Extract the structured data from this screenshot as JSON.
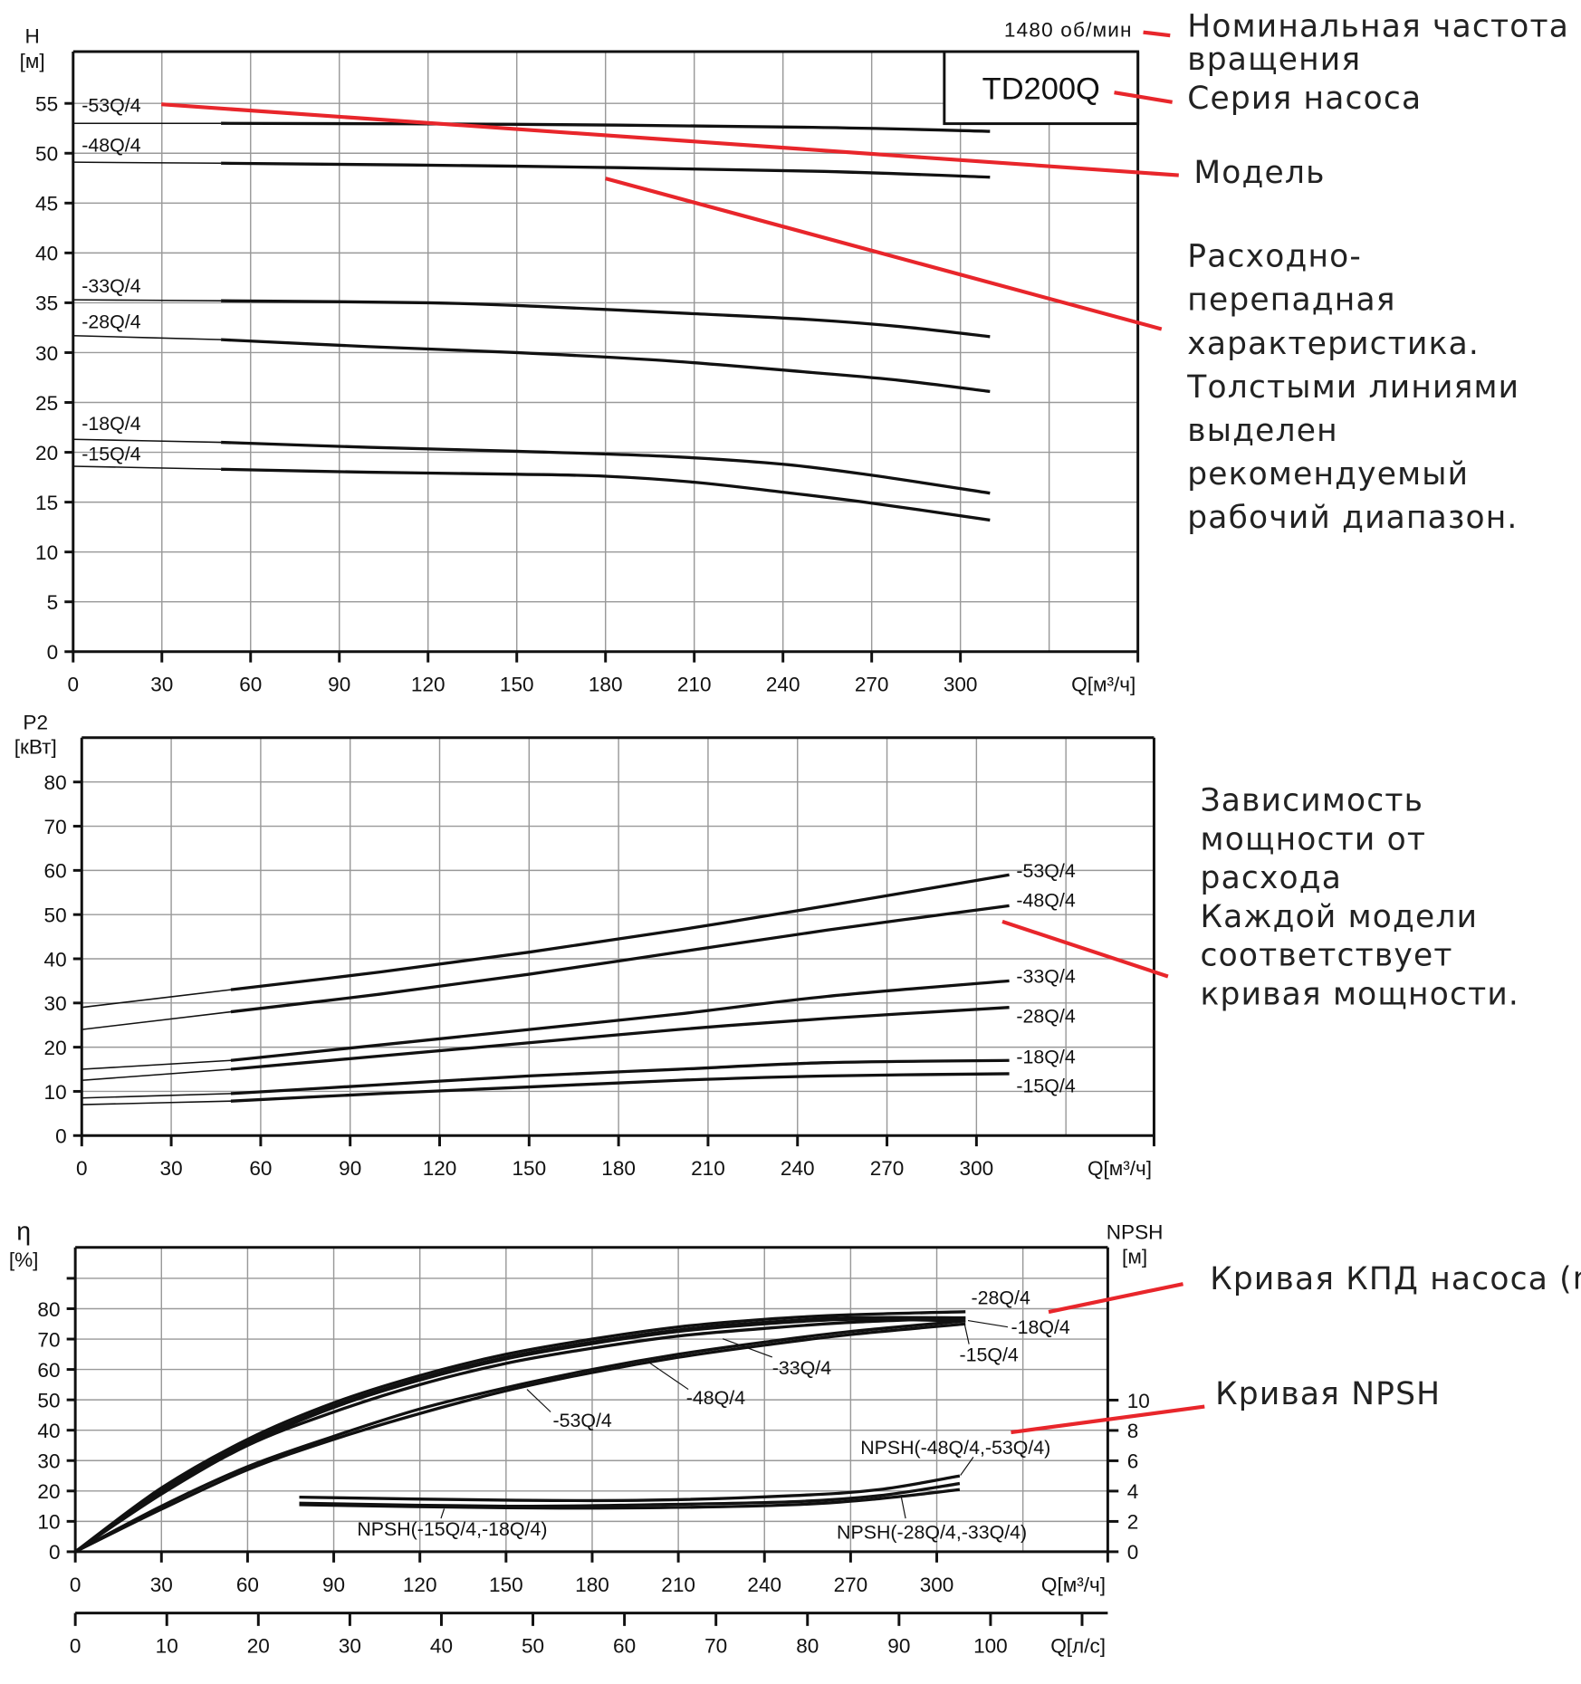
{
  "colors": {
    "curve": "#111111",
    "grid": "#999999",
    "annotation": "#e8262b"
  },
  "chart_data": [
    {
      "type": "line",
      "id": "head",
      "ylabel": "H",
      "yunit": "[м]",
      "xlabel": "Q[м³/ч]",
      "xlim": [
        0,
        330
      ],
      "ylim": [
        0,
        60
      ],
      "xticks": [
        0,
        30,
        60,
        90,
        120,
        150,
        180,
        210,
        240,
        270,
        300
      ],
      "yticks": [
        0,
        5,
        10,
        15,
        20,
        25,
        30,
        35,
        40,
        45,
        50,
        55
      ],
      "speed_label": "1480 об/мин",
      "series_title": "TD200Q",
      "grid": true,
      "series": [
        {
          "name": "-53Q/4",
          "x": [
            0,
            50,
            150,
            250,
            310
          ],
          "y": [
            53,
            53,
            52.9,
            52.6,
            52.2
          ]
        },
        {
          "name": "-48Q/4",
          "x": [
            0,
            50,
            150,
            250,
            310
          ],
          "y": [
            49.1,
            49,
            48.7,
            48.2,
            47.6
          ]
        },
        {
          "name": "-33Q/4",
          "x": [
            0,
            50,
            120,
            160,
            210,
            250,
            280,
            310
          ],
          "y": [
            35.3,
            35.2,
            35,
            34.6,
            33.9,
            33.3,
            32.6,
            31.6
          ]
        },
        {
          "name": "-28Q/4",
          "x": [
            0,
            50,
            100,
            150,
            200,
            250,
            280,
            310
          ],
          "y": [
            31.7,
            31.3,
            30.6,
            30,
            29.2,
            28,
            27.2,
            26.1
          ]
        },
        {
          "name": "-18Q/4",
          "x": [
            0,
            50,
            100,
            150,
            200,
            240,
            270,
            310
          ],
          "y": [
            21.3,
            21,
            20.5,
            20.1,
            19.6,
            18.8,
            17.7,
            15.9
          ]
        },
        {
          "name": "-15Q/4",
          "x": [
            0,
            50,
            100,
            150,
            180,
            210,
            240,
            270,
            310
          ],
          "y": [
            18.6,
            18.3,
            18,
            17.8,
            17.6,
            17,
            16,
            14.9,
            13.2
          ]
        }
      ]
    },
    {
      "type": "line",
      "id": "power",
      "ylabel": "P2",
      "yunit": "[кВт]",
      "xlabel": "Q[м³/ч]",
      "xlim": [
        0,
        330
      ],
      "ylim": [
        0,
        90
      ],
      "xticks": [
        0,
        30,
        60,
        90,
        120,
        150,
        180,
        210,
        240,
        270,
        300
      ],
      "yticks": [
        0,
        10,
        20,
        30,
        40,
        50,
        60,
        70,
        80
      ],
      "grid": true,
      "series": [
        {
          "name": "-53Q/4",
          "x": [
            0,
            50,
            100,
            150,
            200,
            250,
            311
          ],
          "y": [
            29,
            33,
            37,
            41.5,
            46.5,
            52,
            59
          ]
        },
        {
          "name": "-48Q/4",
          "x": [
            0,
            50,
            100,
            150,
            200,
            250,
            311
          ],
          "y": [
            24,
            28,
            32,
            36.5,
            41.5,
            46.5,
            52
          ]
        },
        {
          "name": "-33Q/4",
          "x": [
            0,
            50,
            100,
            150,
            200,
            250,
            311
          ],
          "y": [
            15,
            17,
            20.5,
            24,
            27.5,
            31.5,
            35
          ]
        },
        {
          "name": "-28Q/4",
          "x": [
            0,
            50,
            100,
            150,
            200,
            250,
            311
          ],
          "y": [
            12.5,
            15,
            18,
            21,
            24,
            26.5,
            29
          ]
        },
        {
          "name": "-18Q/4",
          "x": [
            0,
            50,
            100,
            150,
            200,
            250,
            311
          ],
          "y": [
            8.5,
            9.5,
            11.5,
            13.5,
            15,
            16.5,
            17
          ]
        },
        {
          "name": "-15Q/4",
          "x": [
            0,
            50,
            100,
            150,
            200,
            250,
            311
          ],
          "y": [
            7,
            7.8,
            9.5,
            11,
            12.5,
            13.5,
            14
          ]
        }
      ]
    },
    {
      "type": "line",
      "id": "efficiency",
      "ylabel": "η",
      "yunit": "[%]",
      "y2label": "NPSH",
      "y2unit": "[м]",
      "xlabel": "Q[м³/ч]",
      "x2label": "Q[л/с]",
      "xlim": [
        0,
        330
      ],
      "ylim": [
        0,
        100
      ],
      "y2lim": [
        0,
        20
      ],
      "xticks": [
        0,
        30,
        60,
        90,
        120,
        150,
        180,
        210,
        240,
        270,
        300
      ],
      "yticks": [
        0,
        10,
        20,
        30,
        40,
        50,
        60,
        70,
        80
      ],
      "y2ticks": [
        0,
        2,
        4,
        6,
        8,
        10
      ],
      "x2ticks": [
        0,
        10,
        20,
        30,
        40,
        50,
        60,
        70,
        80,
        90,
        100
      ],
      "grid": true,
      "series": [
        {
          "name": "-28Q/4",
          "x": [
            0,
            30,
            60,
            90,
            120,
            150,
            180,
            210,
            240,
            270,
            310
          ],
          "y": [
            0,
            21,
            37,
            49,
            58,
            65,
            70,
            74,
            76.5,
            78,
            79
          ]
        },
        {
          "name": "-18Q/4",
          "x": [
            0,
            30,
            60,
            90,
            120,
            150,
            180,
            210,
            240,
            270,
            310
          ],
          "y": [
            0,
            20,
            36,
            48,
            57,
            64,
            69,
            73,
            75.5,
            77,
            77
          ]
        },
        {
          "name": "-15Q/4",
          "x": [
            0,
            30,
            60,
            90,
            120,
            150,
            180,
            210,
            240,
            270,
            310
          ],
          "y": [
            0,
            20,
            35.5,
            47.5,
            56.5,
            63.5,
            68.5,
            72.5,
            75,
            76.5,
            76
          ]
        },
        {
          "name": "-33Q/4",
          "x": [
            0,
            30,
            60,
            90,
            120,
            150,
            180,
            210,
            240,
            270,
            310
          ],
          "y": [
            0,
            19,
            35,
            46,
            55,
            62,
            67,
            71,
            73.5,
            75.5,
            77
          ]
        },
        {
          "name": "-48Q/4",
          "x": [
            0,
            30,
            60,
            90,
            120,
            150,
            180,
            210,
            240,
            270,
            310
          ],
          "y": [
            0,
            15,
            28,
            38,
            47,
            54,
            60,
            65,
            69,
            72.5,
            76
          ]
        },
        {
          "name": "-53Q/4",
          "x": [
            0,
            30,
            60,
            90,
            120,
            150,
            180,
            210,
            240,
            270,
            310
          ],
          "y": [
            0,
            14,
            27,
            37,
            45.5,
            53,
            59,
            64,
            68,
            71.5,
            75
          ]
        }
      ],
      "npsh_series": [
        {
          "name": "NPSH(-48Q/4,-53Q/4)",
          "x": [
            78,
            150,
            200,
            250,
            280,
            308
          ],
          "y": [
            3.6,
            3.4,
            3.4,
            3.7,
            4.1,
            5
          ]
        },
        {
          "name": "NPSH(-28Q/4,-33Q/4)",
          "x": [
            78,
            150,
            200,
            250,
            280,
            308
          ],
          "y": [
            3.2,
            3.0,
            3.1,
            3.3,
            3.7,
            4.5
          ]
        },
        {
          "name": "NPSH(-15Q/4,-18Q/4)",
          "x": [
            78,
            150,
            200,
            250,
            280,
            308
          ],
          "y": [
            3.1,
            2.9,
            2.9,
            3.1,
            3.5,
            4.1
          ]
        }
      ]
    }
  ],
  "annotations": {
    "speed": "Номинальная частота вращения",
    "series": "Серия насоса",
    "model": "Модель",
    "hq": [
      "Расходно-",
      "перепадная",
      "характеристика.",
      "Толстыми линиями",
      "выделен",
      "рекомендуемый",
      "рабочий диапазон."
    ],
    "power": [
      "Зависимость",
      "мощности от",
      "расхода",
      "Каждой модели",
      "соответствует",
      "кривая мощности."
    ],
    "eff": "Кривая КПД насоса (η)",
    "npsh": "Кривая NPSH"
  }
}
